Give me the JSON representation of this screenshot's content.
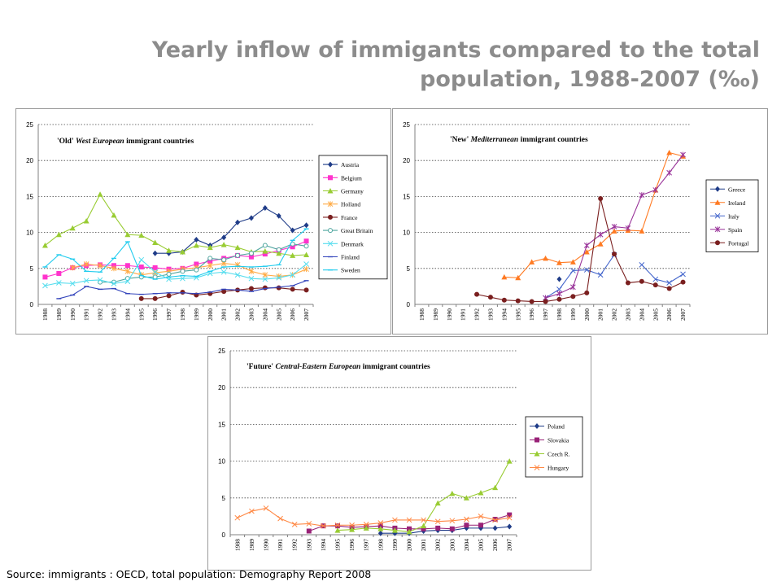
{
  "slide": {
    "title_line1": "Yearly inflow of immigants compared to the  total",
    "title_line2": "population, 1988-2007 (‰)",
    "source": "Source: immigrants : OECD, total population: Demography Report 2008"
  },
  "chart_data": [
    {
      "id": "old",
      "type": "line",
      "title_parts": [
        {
          "text": "'Old' ",
          "italic": false
        },
        {
          "text": "West European",
          "italic": true
        },
        {
          "text": " immigrant countries",
          "italic": false
        }
      ],
      "x": [
        "1988",
        "1989",
        "1990",
        "1991",
        "1992",
        "1993",
        "1994",
        "1995",
        "1996",
        "1997",
        "1998",
        "1999",
        "2000",
        "2001",
        "2002",
        "2003",
        "2004",
        "2005",
        "2006",
        "2007"
      ],
      "ylim": [
        0,
        25
      ],
      "yticks": [
        0,
        5,
        10,
        15,
        20,
        25
      ],
      "grid": "dotted-horizontal",
      "legend_position": "right",
      "series": [
        {
          "name": "Austria",
          "color": "#1f3c88",
          "marker": "diamond",
          "values": [
            null,
            null,
            null,
            null,
            null,
            null,
            null,
            null,
            7.1,
            7.1,
            7.3,
            9.0,
            8.2,
            9.3,
            11.4,
            12.0,
            13.4,
            12.3,
            10.3,
            11.0
          ]
        },
        {
          "name": "Belgium",
          "color": "#ff33cc",
          "marker": "square",
          "values": [
            3.8,
            4.3,
            5.1,
            5.4,
            5.5,
            5.4,
            5.4,
            5.2,
            5.1,
            4.9,
            5.0,
            5.6,
            6.0,
            6.4,
            6.8,
            6.6,
            7.0,
            7.5,
            8.0,
            8.8
          ]
        },
        {
          "name": "Germany",
          "color": "#99cc33",
          "marker": "triangle",
          "values": [
            8.2,
            9.7,
            10.6,
            11.6,
            15.3,
            12.4,
            9.7,
            9.6,
            8.6,
            7.5,
            7.3,
            8.2,
            7.9,
            8.3,
            7.9,
            7.3,
            7.4,
            7.1,
            6.8,
            6.9
          ]
        },
        {
          "name": "Holland",
          "color": "#ffaa44",
          "marker": "asterisk",
          "values": [
            null,
            null,
            5.1,
            5.6,
            5.4,
            5.0,
            4.6,
            4.1,
            4.4,
            4.6,
            4.9,
            5.1,
            5.4,
            5.7,
            5.5,
            4.6,
            4.1,
            3.9,
            4.1,
            4.9
          ]
        },
        {
          "name": "France",
          "color": "#7a1f1f",
          "marker": "circle",
          "values": [
            null,
            null,
            null,
            null,
            null,
            null,
            null,
            0.8,
            0.8,
            1.2,
            1.7,
            1.3,
            1.5,
            1.8,
            2.0,
            2.2,
            2.3,
            2.3,
            2.1,
            2.0
          ]
        },
        {
          "name": "Great Britain",
          "color": "#4fa69f",
          "marker": "circle-open",
          "values": [
            null,
            null,
            null,
            null,
            3.1,
            3.1,
            3.6,
            3.8,
            3.8,
            4.2,
            4.6,
            4.8,
            6.4,
            6.2,
            6.8,
            7.1,
            8.2,
            7.6,
            8.4,
            8.1
          ]
        },
        {
          "name": "Denmark",
          "color": "#55ddee",
          "marker": "x",
          "values": [
            2.6,
            3.0,
            2.9,
            3.3,
            3.4,
            2.9,
            3.2,
            6.2,
            4.5,
            3.5,
            3.6,
            3.7,
            4.3,
            4.5,
            4.1,
            3.6,
            3.5,
            3.7,
            4.1,
            5.6
          ]
        },
        {
          "name": "Finland",
          "color": "#3344bb",
          "marker": "dash",
          "values": [
            null,
            0.8,
            1.3,
            2.5,
            2.1,
            2.2,
            1.5,
            1.4,
            1.5,
            1.6,
            1.6,
            1.5,
            1.7,
            2.1,
            2.0,
            1.8,
            2.2,
            2.4,
            2.6,
            3.3
          ]
        },
        {
          "name": "Sweden",
          "color": "#22ccee",
          "marker": "dash",
          "values": [
            5.2,
            6.9,
            6.3,
            4.6,
            4.5,
            6.4,
            8.7,
            4.0,
            3.5,
            3.8,
            4.0,
            3.9,
            4.6,
            5.2,
            5.3,
            5.2,
            5.3,
            5.5,
            8.9,
            10.5
          ]
        }
      ]
    },
    {
      "id": "new",
      "type": "line",
      "title_parts": [
        {
          "text": "'New' ",
          "italic": false
        },
        {
          "text": "Mediterranean",
          "italic": true
        },
        {
          "text": " immigrant countries",
          "italic": false
        }
      ],
      "x": [
        "1988",
        "1989",
        "1990",
        "1991",
        "1992",
        "1993",
        "1994",
        "1995",
        "1996",
        "1997",
        "1998",
        "1999",
        "2000",
        "2001",
        "2002",
        "2003",
        "2004",
        "2005",
        "2006",
        "2007"
      ],
      "ylim": [
        0,
        25
      ],
      "yticks": [
        0,
        5,
        10,
        15,
        20,
        25
      ],
      "grid": "dotted-horizontal",
      "legend_position": "right",
      "series": [
        {
          "name": "Greece",
          "color": "#1f3c88",
          "marker": "diamond",
          "values": [
            null,
            null,
            null,
            null,
            null,
            null,
            null,
            null,
            null,
            null,
            3.5,
            null,
            null,
            null,
            null,
            null,
            null,
            null,
            null,
            null
          ]
        },
        {
          "name": "Ireland",
          "color": "#ff7a22",
          "marker": "triangle",
          "values": [
            null,
            null,
            null,
            null,
            null,
            null,
            3.8,
            3.7,
            5.9,
            6.4,
            5.8,
            5.9,
            7.3,
            8.4,
            10.2,
            10.3,
            10.2,
            15.9,
            21.1,
            20.6
          ]
        },
        {
          "name": "Italy",
          "color": "#4466cc",
          "marker": "x",
          "values": [
            null,
            null,
            null,
            null,
            null,
            null,
            null,
            null,
            null,
            0.9,
            2.1,
            4.7,
            4.8,
            4.1,
            6.9,
            null,
            5.5,
            3.5,
            3.0,
            4.2
          ]
        },
        {
          "name": "Spain",
          "color": "#993399",
          "marker": "asterisk",
          "values": [
            null,
            null,
            null,
            null,
            null,
            null,
            null,
            null,
            null,
            0.9,
            1.5,
            2.4,
            8.2,
            9.7,
            10.8,
            10.6,
            15.2,
            15.9,
            18.3,
            20.8
          ]
        },
        {
          "name": "Portugal",
          "color": "#7a1f1f",
          "marker": "circle",
          "values": [
            null,
            null,
            null,
            null,
            1.4,
            1.0,
            0.6,
            0.5,
            0.4,
            0.4,
            0.7,
            1.1,
            1.6,
            14.7,
            7.0,
            3.0,
            3.2,
            2.7,
            2.2,
            3.1
          ]
        }
      ]
    },
    {
      "id": "future",
      "type": "line",
      "title_parts": [
        {
          "text": "'Future' ",
          "italic": false
        },
        {
          "text": "Central-Eastern European",
          "italic": true
        },
        {
          "text": " immigrant countries",
          "italic": false
        }
      ],
      "x": [
        "1988",
        "1989",
        "1990",
        "1991",
        "1992",
        "1993",
        "1994",
        "1995",
        "1996",
        "1997",
        "1998",
        "1999",
        "2000",
        "2001",
        "2002",
        "2003",
        "2004",
        "2005",
        "2006",
        "2007"
      ],
      "ylim": [
        0,
        25
      ],
      "yticks": [
        0,
        5,
        10,
        15,
        20,
        25
      ],
      "grid": "dotted-horizontal",
      "legend_position": "right",
      "series": [
        {
          "name": "Poland",
          "color": "#1f3c88",
          "marker": "diamond",
          "values": [
            null,
            null,
            null,
            null,
            null,
            null,
            null,
            null,
            null,
            null,
            0.2,
            0.2,
            0.2,
            0.5,
            0.6,
            0.6,
            0.9,
            0.9,
            0.9,
            1.1
          ]
        },
        {
          "name": "Slovakia",
          "color": "#992277",
          "marker": "square",
          "values": [
            null,
            null,
            null,
            null,
            null,
            0.5,
            1.2,
            1.2,
            1.0,
            1.1,
            1.2,
            0.9,
            0.8,
            0.8,
            0.9,
            0.8,
            1.3,
            1.3,
            2.1,
            2.7
          ]
        },
        {
          "name": "Czech R.",
          "color": "#99cc33",
          "marker": "triangle",
          "values": [
            null,
            null,
            null,
            null,
            null,
            null,
            null,
            0.6,
            0.7,
            0.9,
            0.8,
            0.6,
            0.4,
            1.2,
            4.3,
            5.6,
            5.0,
            5.7,
            6.4,
            10.0
          ]
        },
        {
          "name": "Hungary",
          "color": "#ff8844",
          "marker": "x",
          "values": [
            2.3,
            3.2,
            3.6,
            2.2,
            1.4,
            1.5,
            1.2,
            1.3,
            1.3,
            1.4,
            1.6,
            2.0,
            2.0,
            2.0,
            1.8,
            1.9,
            2.1,
            2.5,
            2.0,
            2.3
          ]
        }
      ]
    }
  ]
}
